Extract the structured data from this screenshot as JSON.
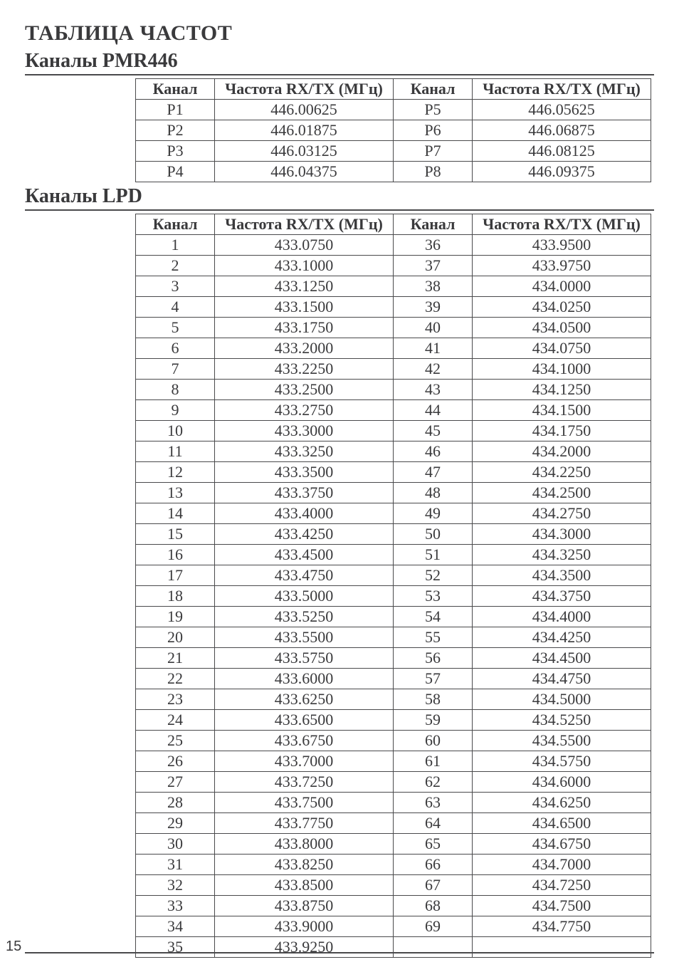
{
  "page": {
    "title": "ТАБЛИЦА ЧАСТОТ",
    "page_number": "15"
  },
  "pmr": {
    "title": "Каналы PMR446",
    "headers": {
      "ch": "Канал",
      "freq": "Частота RX/TX (МГц)"
    },
    "rows_left": [
      {
        "ch": "P1",
        "freq": "446.00625"
      },
      {
        "ch": "P2",
        "freq": "446.01875"
      },
      {
        "ch": "P3",
        "freq": "446.03125"
      },
      {
        "ch": "P4",
        "freq": "446.04375"
      }
    ],
    "rows_right": [
      {
        "ch": "P5",
        "freq": "446.05625"
      },
      {
        "ch": "P6",
        "freq": "446.06875"
      },
      {
        "ch": "P7",
        "freq": "446.08125"
      },
      {
        "ch": "P8",
        "freq": "446.09375"
      }
    ]
  },
  "lpd": {
    "title": "Каналы LPD",
    "headers": {
      "ch": "Канал",
      "freq": "Частота RX/TX (МГц)"
    },
    "rows_left": [
      {
        "ch": "1",
        "freq": "433.0750"
      },
      {
        "ch": "2",
        "freq": "433.1000"
      },
      {
        "ch": "3",
        "freq": "433.1250"
      },
      {
        "ch": "4",
        "freq": "433.1500"
      },
      {
        "ch": "5",
        "freq": "433.1750"
      },
      {
        "ch": "6",
        "freq": "433.2000"
      },
      {
        "ch": "7",
        "freq": "433.2250"
      },
      {
        "ch": "8",
        "freq": "433.2500"
      },
      {
        "ch": "9",
        "freq": "433.2750"
      },
      {
        "ch": "10",
        "freq": "433.3000"
      },
      {
        "ch": "11",
        "freq": "433.3250"
      },
      {
        "ch": "12",
        "freq": "433.3500"
      },
      {
        "ch": "13",
        "freq": "433.3750"
      },
      {
        "ch": "14",
        "freq": "433.4000"
      },
      {
        "ch": "15",
        "freq": "433.4250"
      },
      {
        "ch": "16",
        "freq": "433.4500"
      },
      {
        "ch": "17",
        "freq": "433.4750"
      },
      {
        "ch": "18",
        "freq": "433.5000"
      },
      {
        "ch": "19",
        "freq": "433.5250"
      },
      {
        "ch": "20",
        "freq": "433.5500"
      },
      {
        "ch": "21",
        "freq": "433.5750"
      },
      {
        "ch": "22",
        "freq": "433.6000"
      },
      {
        "ch": "23",
        "freq": "433.6250"
      },
      {
        "ch": "24",
        "freq": "433.6500"
      },
      {
        "ch": "25",
        "freq": "433.6750"
      },
      {
        "ch": "26",
        "freq": "433.7000"
      },
      {
        "ch": "27",
        "freq": "433.7250"
      },
      {
        "ch": "28",
        "freq": "433.7500"
      },
      {
        "ch": "29",
        "freq": "433.7750"
      },
      {
        "ch": "30",
        "freq": "433.8000"
      },
      {
        "ch": "31",
        "freq": "433.8250"
      },
      {
        "ch": "32",
        "freq": "433.8500"
      },
      {
        "ch": "33",
        "freq": "433.8750"
      },
      {
        "ch": "34",
        "freq": "433.9000"
      },
      {
        "ch": "35",
        "freq": "433.9250"
      }
    ],
    "rows_right": [
      {
        "ch": "36",
        "freq": "433.9500"
      },
      {
        "ch": "37",
        "freq": "433.9750"
      },
      {
        "ch": "38",
        "freq": "434.0000"
      },
      {
        "ch": "39",
        "freq": "434.0250"
      },
      {
        "ch": "40",
        "freq": "434.0500"
      },
      {
        "ch": "41",
        "freq": "434.0750"
      },
      {
        "ch": "42",
        "freq": "434.1000"
      },
      {
        "ch": "43",
        "freq": "434.1250"
      },
      {
        "ch": "44",
        "freq": "434.1500"
      },
      {
        "ch": "45",
        "freq": "434.1750"
      },
      {
        "ch": "46",
        "freq": "434.2000"
      },
      {
        "ch": "47",
        "freq": "434.2250"
      },
      {
        "ch": "48",
        "freq": "434.2500"
      },
      {
        "ch": "49",
        "freq": "434.2750"
      },
      {
        "ch": "50",
        "freq": "434.3000"
      },
      {
        "ch": "51",
        "freq": "434.3250"
      },
      {
        "ch": "52",
        "freq": "434.3500"
      },
      {
        "ch": "53",
        "freq": "434.3750"
      },
      {
        "ch": "54",
        "freq": "434.4000"
      },
      {
        "ch": "55",
        "freq": "434.4250"
      },
      {
        "ch": "56",
        "freq": "434.4500"
      },
      {
        "ch": "57",
        "freq": "434.4750"
      },
      {
        "ch": "58",
        "freq": "434.5000"
      },
      {
        "ch": "59",
        "freq": "434.5250"
      },
      {
        "ch": "60",
        "freq": "434.5500"
      },
      {
        "ch": "61",
        "freq": "434.5750"
      },
      {
        "ch": "62",
        "freq": "434.6000"
      },
      {
        "ch": "63",
        "freq": "434.6250"
      },
      {
        "ch": "64",
        "freq": "434.6500"
      },
      {
        "ch": "65",
        "freq": "434.6750"
      },
      {
        "ch": "66",
        "freq": "434.7000"
      },
      {
        "ch": "67",
        "freq": "434.7250"
      },
      {
        "ch": "68",
        "freq": "434.7500"
      },
      {
        "ch": "69",
        "freq": "434.7750"
      },
      {
        "ch": "",
        "freq": ""
      }
    ]
  }
}
